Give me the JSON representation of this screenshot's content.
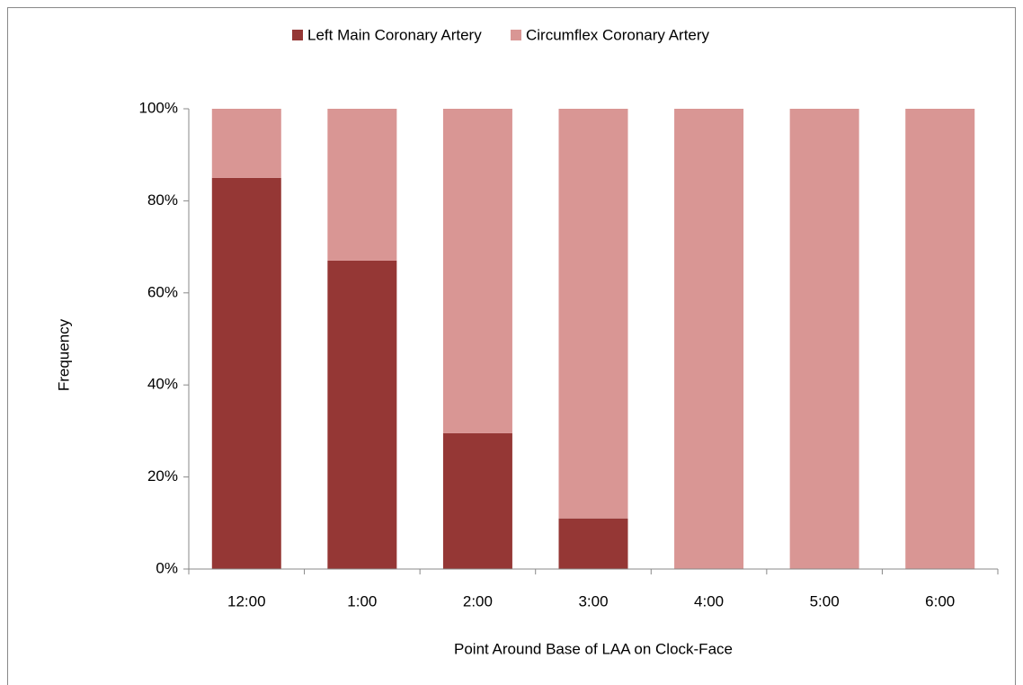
{
  "chart_data": {
    "type": "stacked_bar",
    "categories": [
      "12:00",
      "1:00",
      "2:00",
      "3:00",
      "4:00",
      "5:00",
      "6:00"
    ],
    "series": [
      {
        "name": "Left Main Coronary Artery",
        "color": "#953735",
        "values": [
          85,
          67,
          29.5,
          11,
          0,
          0,
          0
        ]
      },
      {
        "name": "Circumflex Coronary Artery",
        "color": "#d99694",
        "values": [
          15,
          33,
          70.5,
          89,
          100,
          100,
          100
        ]
      }
    ],
    "ylim": [
      0,
      100
    ],
    "yticks": [
      {
        "value": 0,
        "label": "0%"
      },
      {
        "value": 20,
        "label": "20%"
      },
      {
        "value": 40,
        "label": "40%"
      },
      {
        "value": 60,
        "label": "60%"
      },
      {
        "value": 80,
        "label": "80%"
      },
      {
        "value": 100,
        "label": "100%"
      }
    ],
    "ylabel": "Frequency",
    "xlabel": "Point Around Base of LAA on Clock-Face",
    "legend": "top"
  }
}
